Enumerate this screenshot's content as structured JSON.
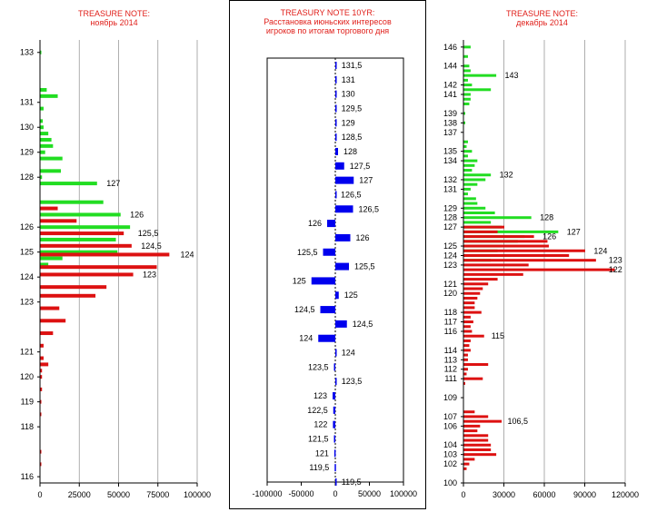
{
  "chart_data": [
    {
      "type": "bar",
      "orientation": "horizontal",
      "title": "TREASURE NOTE:",
      "subtitle": "ноябрь 2014",
      "xlim": [
        0,
        100000
      ],
      "xticks": [
        "0",
        "25000",
        "50000",
        "75000",
        "100000"
      ],
      "ylim": [
        115.75,
        133.5
      ],
      "yticks": [
        116,
        118,
        119,
        120,
        121,
        123,
        124,
        125,
        126,
        128,
        129,
        130,
        131,
        133
      ],
      "grid": true,
      "series": [
        {
          "color": "#22dd22",
          "values": [
            [
              133,
              500
            ],
            [
              131.5,
              4000
            ],
            [
              131.25,
              11000
            ],
            [
              130.75,
              2000
            ],
            [
              130.25,
              1500
            ],
            [
              130,
              2000
            ],
            [
              129.75,
              5000
            ],
            [
              129.5,
              7000
            ],
            [
              129.25,
              8000
            ],
            [
              129,
              3000
            ],
            [
              128.75,
              14000
            ],
            [
              128.25,
              13000
            ],
            [
              128,
              1000
            ],
            [
              127.75,
              36000
            ],
            [
              127,
              40000
            ],
            [
              126.5,
              51000
            ],
            [
              126,
              57000
            ],
            [
              125.5,
              48000
            ],
            [
              125,
              49000
            ],
            [
              124.75,
              14000
            ],
            [
              124.5,
              5000
            ]
          ]
        },
        {
          "color": "#dd1111",
          "values": [
            [
              126.75,
              11000
            ],
            [
              126.25,
              23000
            ],
            [
              125.75,
              53000
            ],
            [
              125.25,
              58000
            ],
            [
              124.9,
              82000
            ],
            [
              124.4,
              74000
            ],
            [
              124.1,
              59000
            ],
            [
              123.6,
              42000
            ],
            [
              123.25,
              35000
            ],
            [
              122.75,
              12000
            ],
            [
              122.25,
              16000
            ],
            [
              121.75,
              8000
            ],
            [
              121.25,
              2000
            ],
            [
              120.75,
              2000
            ],
            [
              120.5,
              5000
            ],
            [
              120.25,
              1000
            ],
            [
              120,
              1000
            ],
            [
              119.5,
              1000
            ],
            [
              119,
              500
            ],
            [
              118.5,
              500
            ],
            [
              117,
              300
            ],
            [
              116.5,
              300
            ]
          ]
        }
      ],
      "annotations": [
        {
          "text": "127",
          "y": 127.75,
          "x": 40000
        },
        {
          "text": "126",
          "y": 126.5,
          "x": 55000
        },
        {
          "text": "125,5",
          "y": 125.75,
          "x": 60000
        },
        {
          "text": "124,5",
          "y": 125.25,
          "x": 62000
        },
        {
          "text": "124",
          "y": 124.9,
          "x": 87000
        },
        {
          "text": "123",
          "y": 124.1,
          "x": 63000
        }
      ]
    },
    {
      "type": "bar",
      "orientation": "horizontal",
      "title": "TREASURY NOTE 10YR:",
      "subtitle": "Расстановка июньских интересов",
      "subtitle2": "игроков по итогам торгового  дня",
      "xlim": [
        -100000,
        100000
      ],
      "xticks": [
        "-100000",
        "-50000",
        "0",
        "50000",
        "100000"
      ],
      "ylim": [
        119.25,
        131.75
      ],
      "grid": false,
      "color": "#0000ee",
      "strikes": [
        "131,5",
        "131",
        "130",
        "129,5",
        "129",
        "128,5",
        "128",
        "127,5",
        "127",
        "126,5",
        "126,5",
        "126",
        "126",
        "125,5",
        "125,5",
        "125",
        "125",
        "124,5",
        "124,5",
        "124",
        "124",
        "123,5",
        "123,5",
        "123",
        "122,5",
        "122",
        "121,5",
        "121",
        "119,5",
        "119,5"
      ],
      "values": [
        1000,
        1000,
        800,
        800,
        800,
        1000,
        4000,
        13000,
        27000,
        0,
        26000,
        -12000,
        22000,
        -18000,
        20000,
        -35000,
        5000,
        -22000,
        17000,
        -25000,
        1000,
        -2000,
        1000,
        -4000,
        -3000,
        -3500,
        -2000,
        -1500,
        -1000,
        1000
      ]
    },
    {
      "type": "bar",
      "orientation": "horizontal",
      "title": "TREASURE NOTE:",
      "subtitle": "декабрь 2014",
      "xlim": [
        0,
        120000
      ],
      "xticks": [
        "0",
        "30000",
        "60000",
        "90000",
        "120000"
      ],
      "ylim": [
        100,
        146.75
      ],
      "yticks": [
        100,
        102,
        103,
        104,
        106,
        107,
        109,
        111,
        112,
        113,
        114,
        116,
        117,
        118,
        120,
        121,
        123,
        124,
        125,
        127,
        128,
        129,
        131,
        132,
        134,
        135,
        137,
        138,
        139,
        141,
        142,
        144,
        146
      ],
      "grid": true,
      "series": [
        {
          "color": "#22dd22",
          "values": [
            [
              146,
              5000
            ],
            [
              145,
              3000
            ],
            [
              144,
              4000
            ],
            [
              143.5,
              5000
            ],
            [
              143,
              24000
            ],
            [
              142.5,
              3000
            ],
            [
              142,
              6000
            ],
            [
              141.5,
              20000
            ],
            [
              141,
              5000
            ],
            [
              140.5,
              5000
            ],
            [
              140,
              4000
            ],
            [
              139,
              1000
            ],
            [
              138,
              1000
            ],
            [
              136,
              3000
            ],
            [
              135.5,
              2000
            ],
            [
              135,
              6000
            ],
            [
              134.5,
              3000
            ],
            [
              134,
              10000
            ],
            [
              133.5,
              8000
            ],
            [
              133,
              6000
            ],
            [
              132.5,
              20000
            ],
            [
              132,
              16000
            ],
            [
              131.5,
              10000
            ],
            [
              131,
              5000
            ],
            [
              130.5,
              3000
            ],
            [
              130,
              9000
            ],
            [
              129.5,
              10000
            ],
            [
              129,
              16000
            ],
            [
              128.5,
              23000
            ],
            [
              128,
              50000
            ],
            [
              127.5,
              20000
            ],
            [
              127,
              28000
            ],
            [
              126.5,
              70000
            ],
            [
              126,
              45000
            ],
            [
              125.5,
              40000
            ],
            [
              125,
              28000
            ],
            [
              124.5,
              25000
            ],
            [
              124,
              35000
            ],
            [
              123.5,
              20000
            ]
          ]
        },
        {
          "color": "#dd1111",
          "values": [
            [
              127,
              30000
            ],
            [
              126.5,
              25000
            ],
            [
              126,
              52000
            ],
            [
              125.5,
              62000
            ],
            [
              125,
              63000
            ],
            [
              124.5,
              90000
            ],
            [
              124,
              78000
            ],
            [
              123.5,
              98000
            ],
            [
              123,
              48000
            ],
            [
              122.5,
              112000
            ],
            [
              122,
              44000
            ],
            [
              121.5,
              25000
            ],
            [
              121,
              18000
            ],
            [
              120.5,
              14000
            ],
            [
              120,
              12000
            ],
            [
              119.5,
              10000
            ],
            [
              119,
              8000
            ],
            [
              118.5,
              8000
            ],
            [
              118,
              13000
            ],
            [
              117.5,
              5000
            ],
            [
              117,
              7000
            ],
            [
              116.5,
              5000
            ],
            [
              116,
              6000
            ],
            [
              115.5,
              15000
            ],
            [
              115,
              5000
            ],
            [
              114.5,
              4000
            ],
            [
              114,
              5000
            ],
            [
              113.5,
              3000
            ],
            [
              113,
              3000
            ],
            [
              112.5,
              18000
            ],
            [
              112,
              3000
            ],
            [
              111.5,
              2000
            ],
            [
              111,
              14000
            ],
            [
              110.5,
              1000
            ],
            [
              107.5,
              8000
            ],
            [
              107,
              18000
            ],
            [
              106.5,
              28000
            ],
            [
              106,
              12000
            ],
            [
              105.5,
              10000
            ],
            [
              105,
              18000
            ],
            [
              104.5,
              18000
            ],
            [
              104,
              20000
            ],
            [
              103.5,
              20000
            ],
            [
              103,
              24000
            ],
            [
              102.5,
              8000
            ],
            [
              102,
              4000
            ],
            [
              101.5,
              2000
            ]
          ]
        }
      ],
      "annotations": [
        {
          "text": "143",
          "y": 143,
          "x": 28000
        },
        {
          "text": "132",
          "y": 132.5,
          "x": 24000
        },
        {
          "text": "128",
          "y": 128,
          "x": 54000
        },
        {
          "text": "127",
          "y": 126.5,
          "x": 74000
        },
        {
          "text": "126",
          "y": 126,
          "x": 56000
        },
        {
          "text": "124",
          "y": 124.5,
          "x": 94000
        },
        {
          "text": "123",
          "y": 123.5,
          "x": 105000
        },
        {
          "text": "122",
          "y": 122.5,
          "x": 105000
        },
        {
          "text": "115",
          "y": 115.5,
          "x": 18000
        },
        {
          "text": "106,5",
          "y": 106.5,
          "x": 30000
        }
      ]
    }
  ]
}
